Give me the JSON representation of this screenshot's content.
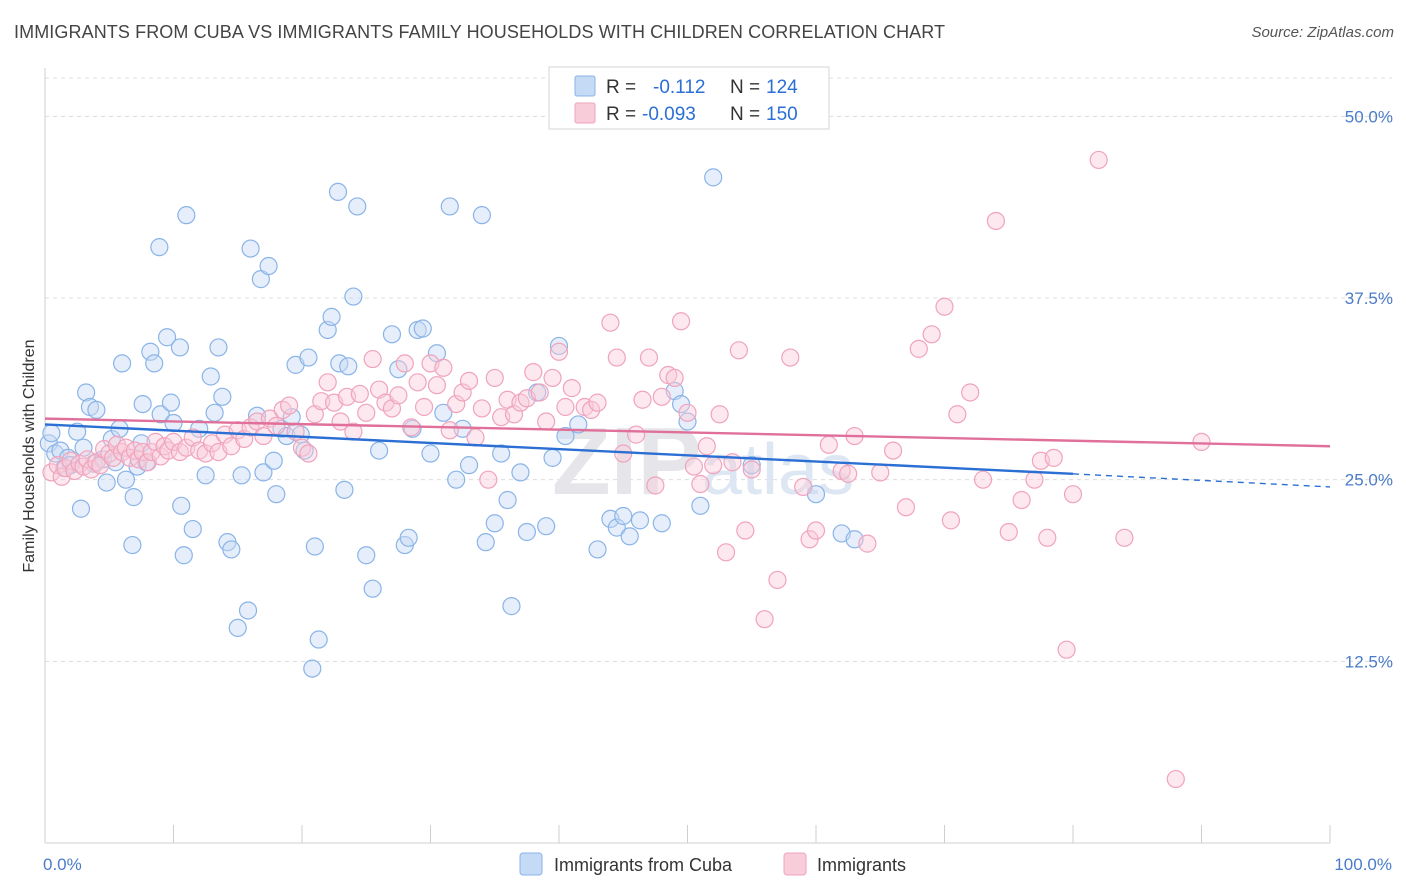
{
  "title": "IMMIGRANTS FROM CUBA VS IMMIGRANTS FAMILY HOUSEHOLDS WITH CHILDREN CORRELATION CHART",
  "source": "Source: ZipAtlas.com",
  "watermark": {
    "zip": "ZIP",
    "atlas": "atlas"
  },
  "chart_data": {
    "type": "scatter",
    "title": "IMMIGRANTS FROM CUBA VS IMMIGRANTS FAMILY HOUSEHOLDS WITH CHILDREN CORRELATION CHART",
    "xlabel": "",
    "ylabel": "Family Households with Children",
    "xlim": [
      0,
      100
    ],
    "ylim": [
      0,
      52.5
    ],
    "x_tick_labels": {
      "left": "0.0%",
      "right": "100.0%"
    },
    "y_ticks": [
      {
        "value": 12.5,
        "label": "12.5%"
      },
      {
        "value": 25.0,
        "label": "25.0%"
      },
      {
        "value": 37.5,
        "label": "37.5%"
      },
      {
        "value": 50.0,
        "label": "50.0%"
      }
    ],
    "grid": true,
    "legend_position": "top-center",
    "series": [
      {
        "name": "Immigrants from Cuba",
        "color": "#8ab4e8",
        "fill": "#c5daf5",
        "line_color": "#2b6fd4",
        "stats": {
          "r_label": "R =",
          "r_value": "-0.112",
          "n_label": "N =",
          "n_value": "124"
        },
        "trend": {
          "x0": 0,
          "y0": 28.8,
          "x1": 80,
          "y1": 25.4,
          "dash_to_x": 100,
          "dash_to_y": 24.5
        },
        "points": [
          [
            0.3,
            27.5
          ],
          [
            0.5,
            28.2
          ],
          [
            0.8,
            26.8
          ],
          [
            1.2,
            27.0
          ],
          [
            1.5,
            25.8
          ],
          [
            1.8,
            26.5
          ],
          [
            2.0,
            26.0
          ],
          [
            2.5,
            28.3
          ],
          [
            2.8,
            23.0
          ],
          [
            3.0,
            27.2
          ],
          [
            3.2,
            31.0
          ],
          [
            3.5,
            30.0
          ],
          [
            3.8,
            26.1
          ],
          [
            4.0,
            29.8
          ],
          [
            4.5,
            26.4
          ],
          [
            4.8,
            24.8
          ],
          [
            5.2,
            27.8
          ],
          [
            5.5,
            26.2
          ],
          [
            5.8,
            28.5
          ],
          [
            6.0,
            33.0
          ],
          [
            6.3,
            25.0
          ],
          [
            6.8,
            20.5
          ],
          [
            6.9,
            23.8
          ],
          [
            7.2,
            25.9
          ],
          [
            7.5,
            27.5
          ],
          [
            7.6,
            30.2
          ],
          [
            7.9,
            26.2
          ],
          [
            8.2,
            33.8
          ],
          [
            8.5,
            33.0
          ],
          [
            8.9,
            41.0
          ],
          [
            9.0,
            29.5
          ],
          [
            9.5,
            34.8
          ],
          [
            9.8,
            30.3
          ],
          [
            10.0,
            28.9
          ],
          [
            10.5,
            34.1
          ],
          [
            10.6,
            23.2
          ],
          [
            10.8,
            19.8
          ],
          [
            11.0,
            43.2
          ],
          [
            11.5,
            21.6
          ],
          [
            12.0,
            28.5
          ],
          [
            12.5,
            25.3
          ],
          [
            12.9,
            32.1
          ],
          [
            13.2,
            29.6
          ],
          [
            13.5,
            34.1
          ],
          [
            13.8,
            30.7
          ],
          [
            14.2,
            20.7
          ],
          [
            14.5,
            20.2
          ],
          [
            15.0,
            14.8
          ],
          [
            15.3,
            25.3
          ],
          [
            15.8,
            16.0
          ],
          [
            16.0,
            40.9
          ],
          [
            16.5,
            29.4
          ],
          [
            16.8,
            38.8
          ],
          [
            17.0,
            25.5
          ],
          [
            17.4,
            39.7
          ],
          [
            17.8,
            26.3
          ],
          [
            18.0,
            24.0
          ],
          [
            18.4,
            28.5
          ],
          [
            18.8,
            28.0
          ],
          [
            19.2,
            29.3
          ],
          [
            19.5,
            32.9
          ],
          [
            19.9,
            28.1
          ],
          [
            20.2,
            27.0
          ],
          [
            20.5,
            33.4
          ],
          [
            20.8,
            12.0
          ],
          [
            21.0,
            20.4
          ],
          [
            21.3,
            14.0
          ],
          [
            22.0,
            35.3
          ],
          [
            22.3,
            36.2
          ],
          [
            22.8,
            44.8
          ],
          [
            22.9,
            33.0
          ],
          [
            23.3,
            24.3
          ],
          [
            23.6,
            32.8
          ],
          [
            24.0,
            37.6
          ],
          [
            24.3,
            43.8
          ],
          [
            25.0,
            19.8
          ],
          [
            25.5,
            17.5
          ],
          [
            26.0,
            27.0
          ],
          [
            27.0,
            35.0
          ],
          [
            27.5,
            32.6
          ],
          [
            28.0,
            20.5
          ],
          [
            28.3,
            21.0
          ],
          [
            28.6,
            28.5
          ],
          [
            29.0,
            35.3
          ],
          [
            29.4,
            35.4
          ],
          [
            30.0,
            26.8
          ],
          [
            30.5,
            33.7
          ],
          [
            31.0,
            29.6
          ],
          [
            31.5,
            43.8
          ],
          [
            32.0,
            25.0
          ],
          [
            32.5,
            28.5
          ],
          [
            33.0,
            26.0
          ],
          [
            34.0,
            43.2
          ],
          [
            34.3,
            20.7
          ],
          [
            35.0,
            22.0
          ],
          [
            35.5,
            26.8
          ],
          [
            36.0,
            23.6
          ],
          [
            36.3,
            16.3
          ],
          [
            37.0,
            25.5
          ],
          [
            37.5,
            21.4
          ],
          [
            38.3,
            31.0
          ],
          [
            39.0,
            21.8
          ],
          [
            39.5,
            26.5
          ],
          [
            40.0,
            34.2
          ],
          [
            40.5,
            28.0
          ],
          [
            41.5,
            28.8
          ],
          [
            43.0,
            20.2
          ],
          [
            44.0,
            22.3
          ],
          [
            44.5,
            21.7
          ],
          [
            45.0,
            22.5
          ],
          [
            45.5,
            21.1
          ],
          [
            46.3,
            22.2
          ],
          [
            48.0,
            22.0
          ],
          [
            49.0,
            31.1
          ],
          [
            49.5,
            30.2
          ],
          [
            50.0,
            29.0
          ],
          [
            51.0,
            23.2
          ],
          [
            52.0,
            45.8
          ],
          [
            55.0,
            26.0
          ],
          [
            60.0,
            24.0
          ],
          [
            62.0,
            21.3
          ],
          [
            63.0,
            20.9
          ]
        ]
      },
      {
        "name": "Immigrants",
        "color": "#f0a3bd",
        "fill": "#f8ccd9",
        "line_color": "#e0709a",
        "stats": {
          "r_label": "R =",
          "r_value": "-0.093",
          "n_label": "N =",
          "n_value": "150"
        },
        "trend": {
          "x0": 0,
          "y0": 29.2,
          "x1": 100,
          "y1": 27.3
        },
        "points": [
          [
            0.5,
            25.5
          ],
          [
            1.0,
            26.0
          ],
          [
            1.3,
            25.2
          ],
          [
            1.6,
            25.8
          ],
          [
            2.0,
            26.3
          ],
          [
            2.3,
            25.6
          ],
          [
            2.7,
            26.1
          ],
          [
            3.0,
            25.9
          ],
          [
            3.3,
            26.4
          ],
          [
            3.6,
            25.7
          ],
          [
            4.0,
            26.2
          ],
          [
            4.3,
            26.0
          ],
          [
            4.6,
            27.1
          ],
          [
            5.0,
            26.8
          ],
          [
            5.3,
            26.5
          ],
          [
            5.6,
            27.4
          ],
          [
            6.0,
            26.9
          ],
          [
            6.3,
            27.2
          ],
          [
            6.6,
            26.5
          ],
          [
            7.0,
            27.0
          ],
          [
            7.3,
            26.4
          ],
          [
            7.6,
            26.9
          ],
          [
            8.0,
            26.2
          ],
          [
            8.3,
            26.9
          ],
          [
            8.6,
            27.6
          ],
          [
            9.0,
            26.6
          ],
          [
            9.3,
            27.3
          ],
          [
            9.6,
            27.0
          ],
          [
            10.0,
            27.6
          ],
          [
            10.5,
            26.9
          ],
          [
            11.0,
            27.2
          ],
          [
            11.5,
            27.9
          ],
          [
            12.0,
            27.0
          ],
          [
            12.5,
            26.8
          ],
          [
            13.0,
            27.5
          ],
          [
            13.5,
            26.9
          ],
          [
            14.0,
            28.1
          ],
          [
            14.5,
            27.3
          ],
          [
            15.0,
            28.4
          ],
          [
            15.5,
            27.8
          ],
          [
            16.0,
            28.6
          ],
          [
            16.5,
            29.0
          ],
          [
            17.0,
            28.0
          ],
          [
            17.5,
            29.2
          ],
          [
            18.0,
            28.7
          ],
          [
            18.5,
            29.8
          ],
          [
            19.0,
            30.1
          ],
          [
            19.5,
            28.3
          ],
          [
            20.0,
            27.2
          ],
          [
            20.5,
            26.8
          ],
          [
            21.0,
            29.5
          ],
          [
            21.5,
            30.4
          ],
          [
            22.0,
            31.7
          ],
          [
            22.5,
            30.3
          ],
          [
            23.0,
            29.0
          ],
          [
            23.5,
            30.7
          ],
          [
            24.0,
            28.3
          ],
          [
            24.5,
            30.9
          ],
          [
            25.0,
            29.6
          ],
          [
            25.5,
            33.3
          ],
          [
            26.0,
            31.2
          ],
          [
            26.5,
            30.3
          ],
          [
            27.0,
            29.9
          ],
          [
            27.5,
            30.8
          ],
          [
            28.0,
            33.0
          ],
          [
            28.5,
            28.6
          ],
          [
            29.0,
            31.7
          ],
          [
            29.5,
            30.0
          ],
          [
            30.0,
            33.0
          ],
          [
            30.5,
            31.5
          ],
          [
            31.0,
            32.7
          ],
          [
            31.5,
            28.4
          ],
          [
            32.0,
            30.2
          ],
          [
            32.5,
            31.0
          ],
          [
            33.0,
            31.8
          ],
          [
            33.5,
            27.9
          ],
          [
            34.0,
            29.9
          ],
          [
            34.5,
            25.0
          ],
          [
            35.0,
            32.0
          ],
          [
            35.5,
            29.3
          ],
          [
            36.0,
            30.5
          ],
          [
            36.5,
            29.5
          ],
          [
            37.0,
            30.3
          ],
          [
            37.5,
            30.6
          ],
          [
            38.0,
            32.4
          ],
          [
            38.5,
            31.0
          ],
          [
            39.0,
            29.0
          ],
          [
            39.5,
            32.0
          ],
          [
            40.0,
            33.8
          ],
          [
            40.5,
            30.0
          ],
          [
            41.0,
            31.3
          ],
          [
            42.0,
            30.0
          ],
          [
            42.5,
            29.8
          ],
          [
            43.0,
            30.3
          ],
          [
            44.0,
            35.8
          ],
          [
            44.5,
            33.4
          ],
          [
            45.0,
            26.8
          ],
          [
            46.0,
            28.1
          ],
          [
            46.5,
            30.5
          ],
          [
            47.0,
            33.4
          ],
          [
            47.5,
            24.6
          ],
          [
            48.0,
            30.7
          ],
          [
            48.5,
            32.2
          ],
          [
            49.0,
            32.0
          ],
          [
            49.5,
            35.9
          ],
          [
            50.0,
            29.6
          ],
          [
            50.5,
            25.9
          ],
          [
            51.0,
            24.7
          ],
          [
            51.5,
            27.3
          ],
          [
            52.0,
            26.0
          ],
          [
            52.5,
            29.5
          ],
          [
            53.0,
            20.0
          ],
          [
            53.5,
            26.2
          ],
          [
            54.0,
            33.9
          ],
          [
            54.5,
            21.5
          ],
          [
            55.0,
            25.7
          ],
          [
            56.0,
            15.4
          ],
          [
            57.0,
            18.1
          ],
          [
            58.0,
            33.4
          ],
          [
            59.0,
            24.5
          ],
          [
            59.5,
            20.9
          ],
          [
            60.0,
            21.5
          ],
          [
            61.0,
            27.4
          ],
          [
            62.0,
            25.6
          ],
          [
            62.5,
            25.4
          ],
          [
            63.0,
            28.0
          ],
          [
            64.0,
            20.6
          ],
          [
            65.0,
            25.5
          ],
          [
            66.0,
            27.0
          ],
          [
            67.0,
            23.1
          ],
          [
            68.0,
            34.0
          ],
          [
            69.0,
            35.0
          ],
          [
            70.0,
            36.9
          ],
          [
            70.5,
            22.2
          ],
          [
            71.0,
            29.5
          ],
          [
            72.0,
            31.0
          ],
          [
            73.0,
            25.0
          ],
          [
            74.0,
            42.8
          ],
          [
            75.0,
            21.4
          ],
          [
            76.0,
            23.6
          ],
          [
            77.0,
            25.0
          ],
          [
            77.5,
            26.3
          ],
          [
            78.0,
            21.0
          ],
          [
            78.5,
            26.5
          ],
          [
            79.5,
            13.3
          ],
          [
            80.0,
            24.0
          ],
          [
            82.0,
            47.0
          ],
          [
            84.0,
            21.0
          ],
          [
            88.0,
            4.4
          ],
          [
            90.0,
            27.6
          ]
        ]
      }
    ]
  }
}
